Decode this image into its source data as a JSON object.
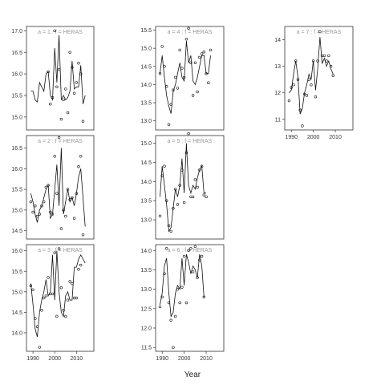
{
  "chart_data": {
    "type": "scatter",
    "xlabel": "Year",
    "ylabel": "",
    "xlim": [
      1987,
      2018
    ],
    "xticks": [
      1990,
      2000,
      2010
    ],
    "x": [
      1989,
      1990,
      1991,
      1992,
      1993,
      1994,
      1995,
      1996,
      1997,
      1998,
      1999,
      2000,
      2001,
      2002,
      2003,
      2004,
      2005,
      2006,
      2007,
      2008,
      2009,
      2010,
      2011,
      2012,
      2013,
      2014,
      2015,
      2016
    ],
    "panels": [
      {
        "label": "a = 1 : f = HERAS",
        "ylim": [
          14.7,
          17.1
        ],
        "yticks": [
          15.0,
          15.5,
          16.0,
          16.5,
          17.0
        ],
        "fit": [
          15.6,
          15.6,
          15.4,
          15.35,
          15.8,
          15.7,
          15.6,
          16.0,
          16.05,
          15.5,
          15.4,
          16.6,
          15.8,
          16.9,
          15.4,
          15.5,
          15.4,
          15.45,
          15.6,
          16.3,
          15.65,
          15.7,
          15.7,
          16.2,
          15.3,
          15.5
        ],
        "points": [
          null,
          null,
          null,
          null,
          null,
          null,
          null,
          null,
          16.05,
          15.3,
          15.45,
          17.0,
          15.7,
          16.1,
          14.95,
          15.4,
          15.65,
          15.1,
          16.5,
          16.15,
          15.55,
          15.8,
          16.25,
          16.0,
          14.9,
          null
        ]
      },
      {
        "label": "a = 2 : f = HERAS",
        "ylim": [
          14.3,
          16.8
        ],
        "yticks": [
          14.5,
          15.0,
          15.5,
          16.0,
          16.5
        ],
        "fit": [
          15.4,
          15.2,
          14.9,
          14.7,
          15.0,
          15.1,
          15.3,
          15.5,
          15.6,
          14.8,
          14.9,
          15.5,
          16.1,
          15.1,
          16.5,
          14.9,
          15.2,
          15.5,
          15.2,
          15.3,
          15.1,
          15.4,
          15.8,
          16.0,
          15.3,
          14.6
        ],
        "points": [
          15.2,
          14.95,
          15.1,
          14.85,
          14.9,
          15.1,
          15.2,
          15.55,
          15.6,
          14.95,
          14.9,
          16.3,
          15.4,
          16.75,
          14.55,
          15.0,
          14.85,
          15.5,
          15.25,
          15.3,
          14.8,
          15.4,
          16.05,
          16.3,
          14.4,
          null
        ]
      },
      {
        "label": "a = 3 : f = HERAS",
        "ylim": [
          13.55,
          16.15
        ],
        "yticks": [
          14.0,
          14.5,
          15.0,
          15.5,
          16.0
        ],
        "fit": [
          15.2,
          14.7,
          14.1,
          13.9,
          14.5,
          14.8,
          15.0,
          15.3,
          14.9,
          15.0,
          15.9,
          14.8,
          16.0,
          15.0,
          14.5,
          14.4,
          14.9,
          15.0,
          14.8,
          14.8,
          15.6,
          15.6,
          15.8,
          15.9,
          15.8,
          15.7
        ],
        "points": [
          15.15,
          15.05,
          14.35,
          14.15,
          13.65,
          14.55,
          14.85,
          14.9,
          15.35,
          14.95,
          14.95,
          15.95,
          14.4,
          16.05,
          15.1,
          14.55,
          14.4,
          14.8,
          15.25,
          15.2,
          14.85,
          14.85,
          15.55,
          15.65,
          null,
          null
        ]
      },
      {
        "label": "a = 4 : f = HERAS",
        "ylim": [
          12.75,
          15.6
        ],
        "yticks": [
          13.0,
          13.5,
          14.0,
          14.5,
          15.0,
          15.5
        ],
        "fit": [
          14.3,
          14.8,
          14.2,
          13.7,
          13.4,
          13.2,
          13.8,
          14.0,
          14.3,
          14.6,
          14.2,
          14.1,
          15.2,
          14.6,
          14.8,
          14.1,
          14.0,
          14.2,
          14.5,
          14.8,
          14.8,
          14.3,
          14.3,
          14.8
        ],
        "points": [
          14.3,
          15.05,
          14.5,
          13.95,
          12.9,
          13.45,
          13.85,
          14.2,
          13.9,
          14.95,
          14.45,
          14.2,
          15.25,
          15.55,
          14.6,
          13.7,
          14.6,
          13.8,
          14.75,
          14.85,
          14.9,
          14.3,
          14.05,
          14.95
        ]
      },
      {
        "label": "a = 5 : f = HERAS",
        "ylim": [
          12.5,
          15.2
        ],
        "yticks": [
          13.0,
          13.5,
          14.0,
          14.5,
          15.0
        ],
        "fit": [
          13.6,
          14.4,
          13.9,
          13.4,
          12.7,
          12.8,
          13.3,
          13.8,
          13.6,
          13.9,
          14.6,
          13.7,
          15.0,
          13.9,
          13.7,
          13.9,
          13.8,
          14.1,
          14.3,
          14.4,
          13.7,
          13.7
        ],
        "points": [
          13.1,
          14.15,
          14.4,
          13.5,
          12.85,
          12.7,
          13.3,
          13.8,
          13.4,
          13.9,
          14.3,
          13.45,
          14.75,
          15.25,
          13.6,
          13.6,
          14.05,
          13.85,
          14.3,
          14.4,
          13.65,
          13.6
        ]
      },
      {
        "label": "a = 6 : f = HERAS",
        "ylim": [
          11.4,
          14.15
        ],
        "yticks": [
          11.5,
          12.0,
          12.5,
          13.0,
          13.5,
          14.0
        ],
        "fit": [
          12.6,
          12.9,
          13.6,
          13.8,
          12.9,
          12.3,
          12.4,
          12.9,
          13.1,
          13.0,
          13.8,
          13.1,
          13.9,
          13.7,
          13.4,
          13.6,
          13.5,
          13.3,
          13.9,
          13.6,
          12.8
        ],
        "points": [
          12.55,
          12.8,
          13.4,
          14.05,
          12.65,
          12.2,
          11.5,
          12.3,
          13.0,
          12.65,
          13.05,
          13.85,
          12.65,
          14.0,
          14.05,
          13.45,
          14.1,
          13.3,
          13.75,
          13.85,
          12.8
        ]
      },
      {
        "label": "a = 7 : f = HERAS",
        "ylim": [
          10.6,
          14.5
        ],
        "yticks": [
          11,
          12,
          13,
          14
        ],
        "fit": [
          12.0,
          12.1,
          12.7,
          13.2,
          12.6,
          11.2,
          11.4,
          12.0,
          12.3,
          12.7,
          12.5,
          13.2,
          12.1,
          12.9,
          14.1,
          13.1,
          13.3,
          13.0,
          13.2,
          12.9,
          12.7
        ],
        "points": [
          11.7,
          12.2,
          12.3,
          13.2,
          12.5,
          11.35,
          10.75,
          11.95,
          11.9,
          12.5,
          12.3,
          13.2,
          11.85,
          13.2,
          14.3,
          13.4,
          13.4,
          13.2,
          13.4,
          13.0,
          12.65
        ]
      }
    ]
  }
}
